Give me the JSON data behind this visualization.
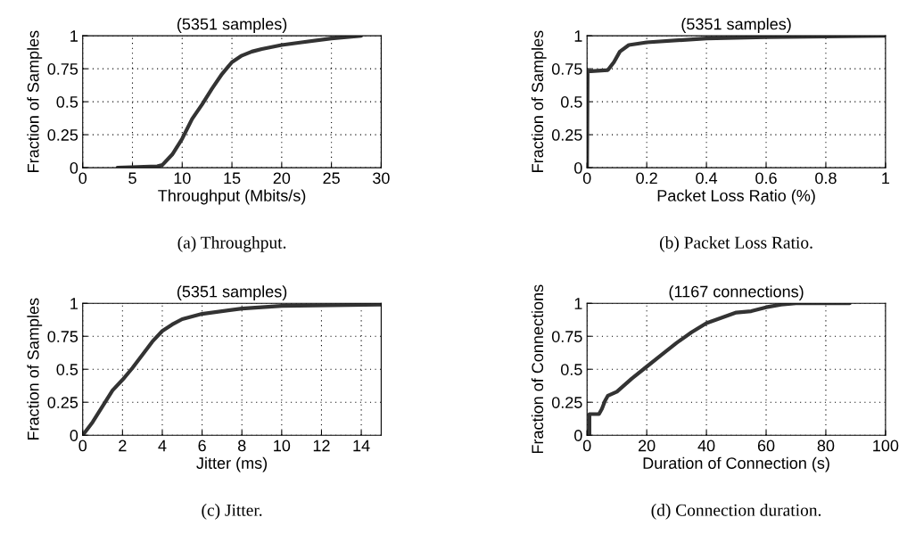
{
  "chart_data": [
    {
      "type": "line",
      "title": "(5351 samples)",
      "xlabel": "Throughput (Mbits/s)",
      "ylabel": "Fraction of Samples",
      "annotations": [
        "(a) Throughput."
      ],
      "grid": true,
      "line_style": "solid",
      "xlim": [
        0,
        30
      ],
      "xticks": [
        0,
        5,
        10,
        15,
        20,
        25,
        30
      ],
      "ylim": [
        0,
        1
      ],
      "yticks": [
        0,
        0.25,
        0.5,
        0.75,
        1
      ],
      "series": [
        {
          "color": "#333333",
          "x": [
            3.5,
            7.5,
            8,
            9,
            10,
            11,
            12,
            13,
            14,
            15,
            16,
            17,
            18,
            20,
            22,
            25,
            28
          ],
          "values": [
            0,
            0.01,
            0.02,
            0.1,
            0.22,
            0.37,
            0.48,
            0.6,
            0.71,
            0.8,
            0.85,
            0.88,
            0.9,
            0.93,
            0.95,
            0.98,
            1
          ]
        }
      ]
    },
    {
      "type": "line",
      "title": "(5351 samples)",
      "xlabel": "Packet Loss Ratio (%)",
      "ylabel": "Fraction of Samples",
      "annotations": [
        "(b) Packet Loss Ratio."
      ],
      "grid": true,
      "line_style": "solid",
      "xlim": [
        0,
        1
      ],
      "xticks": [
        0,
        0.2,
        0.4,
        0.6,
        0.8,
        1
      ],
      "ylim": [
        0,
        1
      ],
      "yticks": [
        0,
        0.25,
        0.5,
        0.75,
        1
      ],
      "series": [
        {
          "color": "#333333",
          "x": [
            0,
            0.002,
            0.07,
            0.09,
            0.11,
            0.14,
            0.2,
            0.4,
            0.6,
            1
          ],
          "values": [
            0,
            0.73,
            0.74,
            0.8,
            0.88,
            0.93,
            0.95,
            0.98,
            0.99,
            1
          ]
        }
      ]
    },
    {
      "type": "line",
      "title": "(5351 samples)",
      "xlabel": "Jitter (ms)",
      "ylabel": "Fraction of Samples",
      "annotations": [
        "(c) Jitter."
      ],
      "grid": true,
      "line_style": "solid",
      "xlim": [
        0,
        15
      ],
      "xticks": [
        0,
        2,
        4,
        6,
        8,
        10,
        12,
        14
      ],
      "ylim": [
        0,
        1
      ],
      "yticks": [
        0,
        0.25,
        0.5,
        0.75,
        1
      ],
      "series": [
        {
          "color": "#333333",
          "x": [
            0,
            0.5,
            1,
            1.5,
            2,
            2.5,
            3,
            3.5,
            4,
            4.5,
            5,
            6,
            8,
            10,
            15
          ],
          "values": [
            0,
            0.1,
            0.22,
            0.34,
            0.42,
            0.51,
            0.61,
            0.71,
            0.79,
            0.84,
            0.88,
            0.92,
            0.96,
            0.98,
            0.99
          ]
        }
      ]
    },
    {
      "type": "line",
      "title": "(1167 connections)",
      "xlabel": "Duration of Connection (s)",
      "ylabel": "Fraction of Connections",
      "annotations": [
        "(d) Connection duration."
      ],
      "grid": true,
      "line_style": "solid",
      "xlim": [
        0,
        100
      ],
      "xticks": [
        0,
        20,
        40,
        60,
        80,
        100
      ],
      "ylim": [
        0,
        1
      ],
      "yticks": [
        0,
        0.25,
        0.5,
        0.75,
        1
      ],
      "series": [
        {
          "color": "#333333",
          "x": [
            0.8,
            0.8,
            4,
            5,
            6,
            7,
            10,
            15,
            20,
            25,
            30,
            35,
            40,
            45,
            50,
            55,
            60,
            65,
            70,
            88
          ],
          "values": [
            0,
            0.16,
            0.16,
            0.2,
            0.26,
            0.3,
            0.33,
            0.43,
            0.52,
            0.61,
            0.7,
            0.78,
            0.85,
            0.89,
            0.93,
            0.94,
            0.97,
            0.99,
            1,
            1
          ]
        }
      ]
    }
  ]
}
